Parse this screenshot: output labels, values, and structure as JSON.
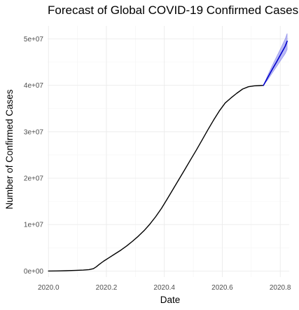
{
  "chart_data": {
    "type": "line",
    "title": "Forecast of Global COVID-19 Confirmed Cases",
    "xlabel": "Date",
    "ylabel": "Number of Confirmed Cases",
    "xlim": [
      1.9997,
      2.0831
    ],
    "ylim": [
      -1300000,
      52800000
    ],
    "x_ticks": [
      2.0,
      2.02,
      2.04,
      2.06,
      2.08
    ],
    "x_tick_labels": [
      "2020.0",
      "2020.2",
      "2020.4",
      "2020.6",
      "2020.8"
    ],
    "y_ticks": [
      0,
      10000000,
      20000000,
      30000000,
      40000000,
      50000000
    ],
    "y_tick_labels": [
      "0e+00",
      "1e+07",
      "2e+07",
      "3e+07",
      "4e+07",
      "5e+07"
    ],
    "grid": true,
    "colors": {
      "actual": "#000000",
      "forecast": "#0000cc",
      "band": "#8080ee"
    },
    "series": [
      {
        "kind": "actual",
        "x": [
          2.0,
          2.003,
          2.006,
          2.009,
          2.012,
          2.014,
          2.0155,
          2.0165,
          2.0175,
          2.019,
          2.021,
          2.023,
          2.025,
          2.027,
          2.029,
          2.031,
          2.033,
          2.035,
          2.037,
          2.039,
          2.041,
          2.043,
          2.045,
          2.047,
          2.049,
          2.051,
          2.053,
          2.055,
          2.057,
          2.059,
          2.061,
          2.063,
          2.065,
          2.067,
          2.069,
          2.071,
          2.073,
          2.0742
        ],
        "y": [
          0,
          20000,
          60000,
          120000,
          200000,
          300000,
          500000,
          900000,
          1400000,
          2100000,
          2900000,
          3700000,
          4500000,
          5400000,
          6400000,
          7500000,
          8700000,
          10100000,
          11700000,
          13500000,
          15500000,
          17600000,
          19700000,
          21800000,
          23900000,
          26000000,
          28200000,
          30400000,
          32500000,
          34500000,
          36200000,
          37300000,
          38300000,
          39200000,
          39700000,
          39900000,
          39950000,
          40000000
        ]
      },
      {
        "kind": "forecast",
        "x": [
          2.0742,
          2.0757,
          2.0772,
          2.0787,
          2.0802,
          2.0817,
          2.0824
        ],
        "y": [
          40000000,
          41700000,
          43400000,
          45000000,
          46700000,
          48400000,
          49500000
        ],
        "lower": [
          40000000,
          41200000,
          42600000,
          44000000,
          45400000,
          46800000,
          47700000
        ],
        "upper": [
          40000000,
          42200000,
          44200000,
          46100000,
          48000000,
          50000000,
          51200000
        ]
      }
    ]
  }
}
